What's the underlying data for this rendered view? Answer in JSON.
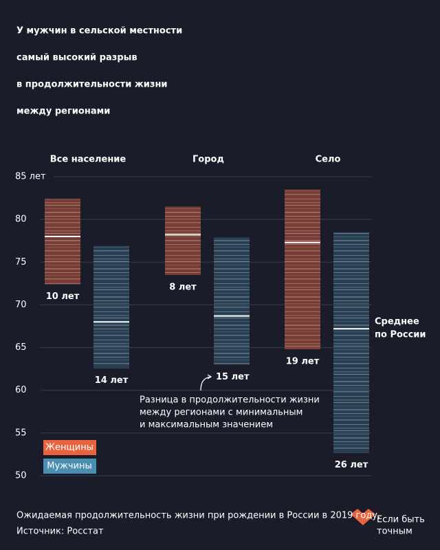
{
  "chart_data": {
    "type": "range",
    "title": [
      "У мужчин в сельской местности",
      "самый высокий разрыв",
      "в продолжительности жизни",
      "между регионами"
    ],
    "categories": [
      "Все население",
      "Город",
      "Село"
    ],
    "series": [
      {
        "name": "Женщины",
        "color": "#e8643f",
        "low": [
          72.4,
          73.5,
          64.8
        ],
        "high": [
          82.4,
          81.5,
          83.5
        ],
        "mean": [
          78.0,
          78.2,
          77.3
        ],
        "values": [
          10,
          8,
          19
        ],
        "value_labels": [
          "10 лет",
          "8 лет",
          "19 лет"
        ]
      },
      {
        "name": "Мужчины",
        "color": "#4a8fb0",
        "low": [
          62.6,
          63.0,
          52.7
        ],
        "high": [
          76.9,
          77.9,
          78.5
        ],
        "mean": [
          68.0,
          68.7,
          67.2
        ],
        "values": [
          14,
          15,
          26
        ],
        "value_labels": [
          "14 лет",
          "15 лет",
          "26 лет"
        ]
      }
    ],
    "ylim": [
      50,
      85
    ],
    "yticks": [
      50,
      55,
      60,
      65,
      70,
      75,
      80,
      {
        "value": 85,
        "label": "85 лет"
      }
    ],
    "grid": true,
    "mean_label": [
      "Среднее",
      "по России"
    ],
    "annotation": [
      "Разница в продолжительности жизни",
      "между регионами с минимальным",
      "и максимальным значением"
    ],
    "note": "Ожидаемая продолжительность жизни при рождении в России в 2019 году.",
    "source": "Источник: Росстат",
    "logo": [
      "Если быть",
      "точным"
    ]
  }
}
